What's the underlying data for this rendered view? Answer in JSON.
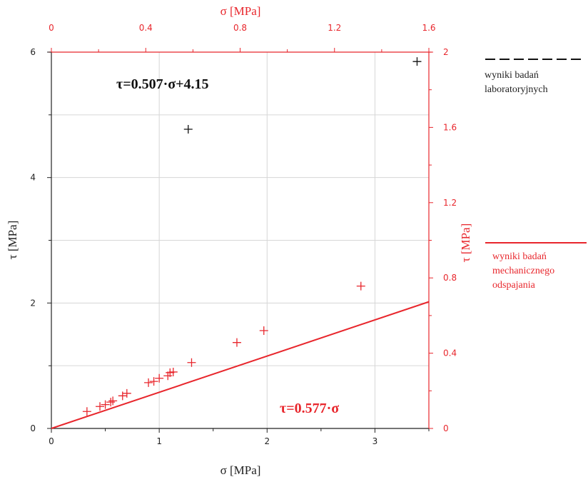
{
  "chart_data": {
    "type": "scatter",
    "bottom_axis": {
      "label": "σ [MPa]",
      "range": [
        0,
        3.5
      ],
      "ticks": [
        "0",
        "1",
        "2",
        "3"
      ],
      "tick_values": [
        0,
        1,
        2,
        3
      ]
    },
    "left_axis": {
      "label": "τ [MPa]",
      "range": [
        0,
        6
      ],
      "ticks": [
        "0",
        "2",
        "4",
        "6"
      ],
      "tick_values": [
        0,
        2,
        4,
        6
      ]
    },
    "top_axis": {
      "label": "σ [MPa]",
      "range": [
        0,
        1.6
      ],
      "ticks": [
        "0",
        "0.4",
        "0.8",
        "1.2",
        "1.6"
      ],
      "tick_values": [
        0,
        0.4,
        0.8,
        1.2,
        1.6
      ]
    },
    "right_axis": {
      "label": "τ [MPa]",
      "range": [
        0,
        2
      ],
      "ticks": [
        "0",
        "0.4",
        "0.8",
        "1.2",
        "1.6",
        "2"
      ],
      "tick_values": [
        0,
        0.4,
        0.8,
        1.2,
        1.6,
        2
      ]
    },
    "grid": true,
    "series": [
      {
        "name": "wyniki badań laboratoryjnych",
        "color": "#111111",
        "line_style": "dashed",
        "axes": "top-right",
        "fit": {
          "slope": 0.507,
          "intercept": 4.15,
          "label": "τ=0.507·σ+4.15"
        },
        "points": [
          {
            "x": 0.58,
            "y": 1.59
          },
          {
            "x": 1.55,
            "y": 1.95
          }
        ]
      },
      {
        "name": "wyniki badań mechanicznego odspajania",
        "color": "#e8262c",
        "line_style": "solid",
        "axes": "bottom-left",
        "fit": {
          "slope": 0.577,
          "intercept": 0,
          "label": "τ=0.577·σ"
        },
        "points": [
          {
            "x": 0.33,
            "y": 0.27
          },
          {
            "x": 0.45,
            "y": 0.35
          },
          {
            "x": 0.5,
            "y": 0.38
          },
          {
            "x": 0.55,
            "y": 0.42
          },
          {
            "x": 0.57,
            "y": 0.44
          },
          {
            "x": 0.66,
            "y": 0.52
          },
          {
            "x": 0.7,
            "y": 0.56
          },
          {
            "x": 0.9,
            "y": 0.73
          },
          {
            "x": 0.95,
            "y": 0.75
          },
          {
            "x": 1.0,
            "y": 0.8
          },
          {
            "x": 1.08,
            "y": 0.84
          },
          {
            "x": 1.1,
            "y": 0.89
          },
          {
            "x": 1.13,
            "y": 0.9
          },
          {
            "x": 1.3,
            "y": 1.05
          },
          {
            "x": 1.72,
            "y": 1.37
          },
          {
            "x": 1.97,
            "y": 1.56
          },
          {
            "x": 2.87,
            "y": 2.27
          }
        ]
      }
    ],
    "legend": [
      {
        "label": "wyniki badań\nlaboratoryjnych",
        "color": "#111111",
        "line_style": "dashed"
      },
      {
        "label": "wyniki badań\nmechanicznego\nodspajania",
        "color": "#e8262c",
        "line_style": "solid"
      }
    ]
  }
}
